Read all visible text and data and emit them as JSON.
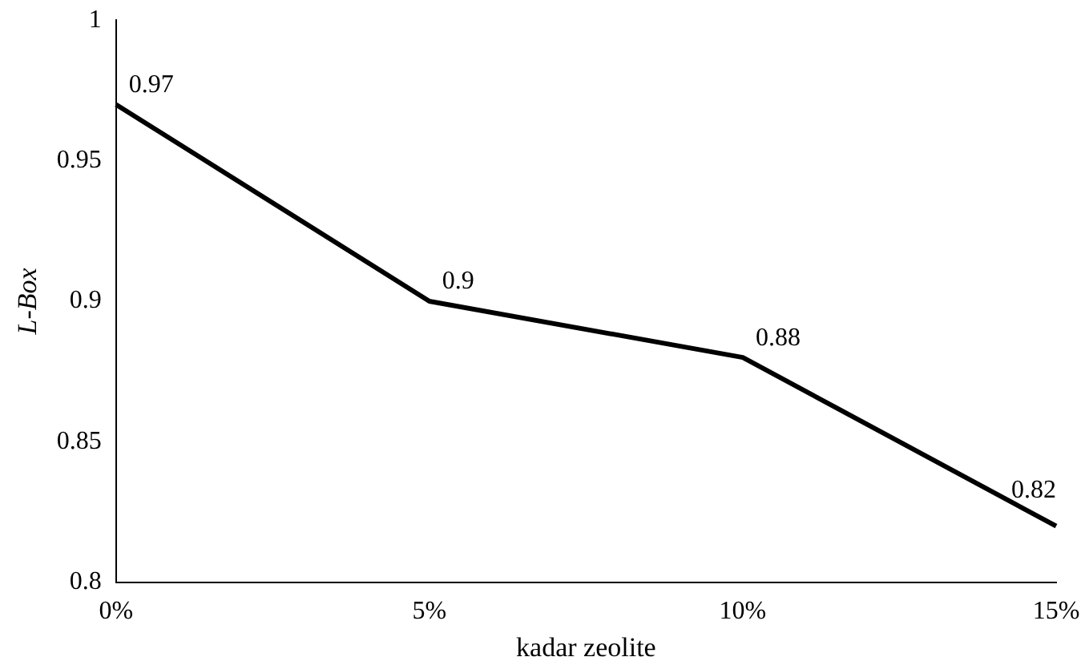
{
  "chart_data": {
    "type": "line",
    "xlabel": "kadar zeolite",
    "ylabel": "L-Box",
    "categories": [
      "0%",
      "5%",
      "10%",
      "15%"
    ],
    "series": [
      {
        "color": "#000000",
        "values": [
          0.97,
          0.9,
          0.88,
          0.82
        ]
      }
    ],
    "ylim": [
      0.8,
      1
    ],
    "yticks": [
      0.8,
      0.85,
      0.9,
      0.95,
      1
    ],
    "grid": false,
    "legend": false,
    "marker": "none",
    "line_style": "solid",
    "data_labels": true
  }
}
